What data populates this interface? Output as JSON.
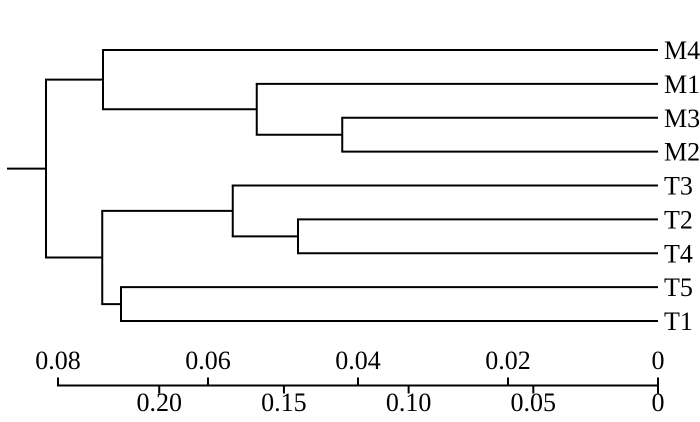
{
  "chart_data": {
    "type": "dendrogram",
    "orientation": "horizontal-right-aligned-leaves",
    "title": "",
    "leaf_order": [
      "M4",
      "M1",
      "M3",
      "M2",
      "T3",
      "T2",
      "T4",
      "T5",
      "T1"
    ],
    "tree": {
      "height": 0.0816,
      "children": [
        {
          "height": 0.074,
          "children": [
            {
              "leaf": "M4"
            },
            {
              "height": 0.0535,
              "children": [
                {
                  "leaf": "M1"
                },
                {
                  "height": 0.0421,
                  "children": [
                    {
                      "leaf": "M3"
                    },
                    {
                      "leaf": "M2"
                    }
                  ]
                }
              ]
            }
          ]
        },
        {
          "height": 0.0741,
          "children": [
            {
              "height": 0.0567,
              "children": [
                {
                  "leaf": "T3"
                },
                {
                  "height": 0.048,
                  "children": [
                    {
                      "leaf": "T2"
                    },
                    {
                      "leaf": "T4"
                    }
                  ]
                }
              ]
            },
            {
              "height": 0.0716,
              "children": [
                {
                  "leaf": "T5"
                },
                {
                  "leaf": "T1"
                }
              ]
            }
          ]
        }
      ]
    },
    "root_tail_height": 0.0868,
    "axes": {
      "top": {
        "side": "above-line",
        "tick_labels": [
          "0.08",
          "0.06",
          "0.04",
          "0.02",
          "0"
        ],
        "tick_values": [
          0.08,
          0.06,
          0.04,
          0.02,
          0
        ],
        "range": [
          0,
          0.08
        ],
        "direction": "decreasing-left-to-right"
      },
      "bottom": {
        "side": "below-line",
        "tick_labels": [
          "0.20",
          "0.15",
          "0.10",
          "0.05",
          "0"
        ],
        "tick_values": [
          0.2,
          0.15,
          0.1,
          0.05,
          0
        ],
        "range": [
          0,
          0.2406
        ],
        "direction": "decreasing-left-to-right"
      }
    },
    "style": {
      "line_color": "#000000",
      "text_color": "#000000",
      "background": "#ffffff"
    }
  }
}
